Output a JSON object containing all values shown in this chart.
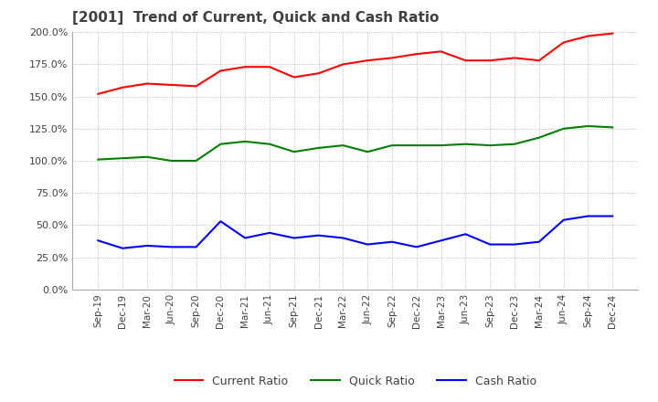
{
  "title": "[2001]  Trend of Current, Quick and Cash Ratio",
  "x_labels": [
    "Sep-19",
    "Dec-19",
    "Mar-20",
    "Jun-20",
    "Sep-20",
    "Dec-20",
    "Mar-21",
    "Jun-21",
    "Sep-21",
    "Dec-21",
    "Mar-22",
    "Jun-22",
    "Sep-22",
    "Dec-22",
    "Mar-23",
    "Jun-23",
    "Sep-23",
    "Dec-23",
    "Mar-24",
    "Jun-24",
    "Sep-24",
    "Dec-24"
  ],
  "current_ratio": [
    152,
    157,
    160,
    159,
    158,
    170,
    173,
    173,
    165,
    168,
    175,
    178,
    180,
    183,
    185,
    178,
    178,
    180,
    178,
    192,
    197,
    199
  ],
  "quick_ratio": [
    101,
    102,
    103,
    100,
    100,
    113,
    115,
    113,
    107,
    110,
    112,
    107,
    112,
    112,
    112,
    113,
    112,
    113,
    118,
    125,
    127,
    126
  ],
  "cash_ratio": [
    38,
    32,
    34,
    33,
    33,
    53,
    40,
    44,
    40,
    42,
    40,
    35,
    37,
    33,
    38,
    43,
    35,
    35,
    37,
    54,
    57,
    57
  ],
  "ylim": [
    0,
    200
  ],
  "yticks": [
    0,
    25,
    50,
    75,
    100,
    125,
    150,
    175,
    200
  ],
  "current_color": "#FF0000",
  "quick_color": "#008000",
  "cash_color": "#0000FF",
  "background_color": "#FFFFFF",
  "grid_color": "#AAAAAA",
  "title_color": "#404040",
  "legend_labels": [
    "Current Ratio",
    "Quick Ratio",
    "Cash Ratio"
  ]
}
